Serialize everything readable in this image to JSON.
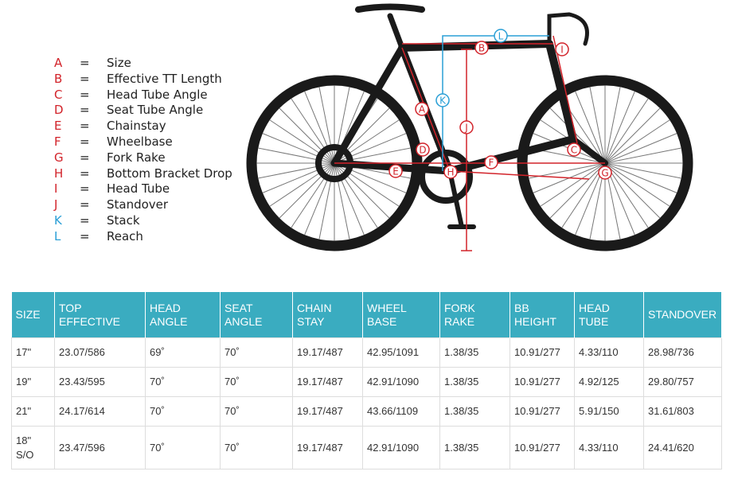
{
  "legend": {
    "separator": "=",
    "items": [
      {
        "letter": "A",
        "label": "Size",
        "color": "#d2232a"
      },
      {
        "letter": "B",
        "label": "Effective TT Length",
        "color": "#d2232a"
      },
      {
        "letter": "C",
        "label": "Head Tube Angle",
        "color": "#d2232a"
      },
      {
        "letter": "D",
        "label": "Seat Tube Angle",
        "color": "#d2232a"
      },
      {
        "letter": "E",
        "label": "Chainstay",
        "color": "#d2232a"
      },
      {
        "letter": "F",
        "label": "Wheelbase",
        "color": "#d2232a"
      },
      {
        "letter": "G",
        "label": "Fork Rake",
        "color": "#d2232a"
      },
      {
        "letter": "H",
        "label": "Bottom Bracket Drop",
        "color": "#d2232a"
      },
      {
        "letter": "I",
        "label": "Head Tube",
        "color": "#d2232a"
      },
      {
        "letter": "J",
        "label": "Standover",
        "color": "#d2232a"
      },
      {
        "letter": "K",
        "label": "Stack",
        "color": "#2a9fd6"
      },
      {
        "letter": "L",
        "label": "Reach",
        "color": "#2a9fd6"
      }
    ]
  },
  "table": {
    "header": [
      "SIZE",
      "TOP EFFECTIVE",
      "HEAD ANGLE",
      "SEAT ANGLE",
      "CHAIN STAY",
      "WHEEL BASE",
      "FORK RAKE",
      "BB HEIGHT",
      "HEAD TUBE",
      "STANDOVER"
    ],
    "rows": [
      [
        "17\"",
        "23.07/586",
        "69˚",
        "70˚",
        "19.17/487",
        "42.95/1091",
        "1.38/35",
        "10.91/277",
        "4.33/110",
        "28.98/736"
      ],
      [
        "19\"",
        "23.43/595",
        "70˚",
        "70˚",
        "19.17/487",
        "42.91/1090",
        "1.38/35",
        "10.91/277",
        "4.92/125",
        "29.80/757"
      ],
      [
        "21\"",
        "24.17/614",
        "70˚",
        "70˚",
        "19.17/487",
        "43.66/1109",
        "1.38/35",
        "10.91/277",
        "5.91/150",
        "31.61/803"
      ],
      [
        "18\" S/O",
        "23.47/596",
        "70˚",
        "70˚",
        "19.17/487",
        "42.91/1090",
        "1.38/35",
        "10.91/277",
        "4.33/110",
        "24.41/620"
      ]
    ]
  }
}
